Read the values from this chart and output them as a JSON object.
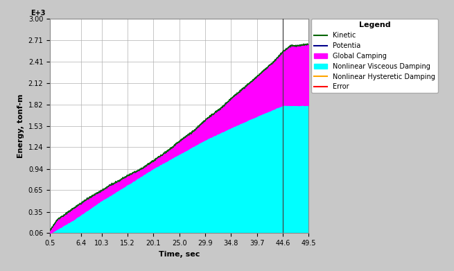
{
  "x_start": 0.5,
  "x_end": 49.5,
  "x_vline": 44.6,
  "ylim": [
    0.06,
    3.0
  ],
  "xlim": [
    0.5,
    49.5
  ],
  "yticks": [
    0.06,
    0.35,
    0.65,
    0.94,
    1.24,
    1.53,
    1.82,
    2.12,
    2.41,
    2.71,
    3.0
  ],
  "xtick_vals": [
    0.5,
    6.4,
    10.3,
    15.2,
    20.1,
    25.0,
    29.9,
    34.8,
    39.7,
    44.6,
    49.5
  ],
  "xtick_labels": [
    "0.5",
    "6.4",
    "10.3",
    "15.2",
    "20.1",
    "25.0",
    "29.9",
    "34.8",
    "39.7",
    "44.6",
    "49.5"
  ],
  "xlabel": "Time, sec",
  "ylabel": "Energy, tonf-m",
  "y_scale_label": "E+3",
  "bg_color": "#c8c8c8",
  "plot_bg_color": "#ffffff",
  "grid_color": "#b0b0b0",
  "cyan_color": "#00ffff",
  "magenta_color": "#ff00ff",
  "dark_green_color": "#006400",
  "dark_blue_color": "#00008B",
  "orange_color": "#FFA500",
  "red_color": "#FF0000",
  "vline_color": "#404040",
  "legend_title": "Legend",
  "legend_entries": [
    "Kinetic",
    "Potentia",
    "Global Camping",
    "Nonlinear Visceous Damping",
    "Nonlinear Hysteretic Damping",
    "Error"
  ],
  "legend_colors": [
    "#006400",
    "#00008B",
    "#ff00ff",
    "#00ffff",
    "#FFA500",
    "#FF0000"
  ],
  "figwidth": 6.55,
  "figheight": 3.91,
  "dpi": 100,
  "t_cyan_ref": [
    0.5,
    5,
    10,
    15,
    20,
    25,
    30,
    35,
    40,
    44.6,
    49.5
  ],
  "y_cyan_ref": [
    0.06,
    0.25,
    0.5,
    0.72,
    0.95,
    1.15,
    1.35,
    1.52,
    1.68,
    1.82,
    1.82
  ],
  "t_total_ref": [
    0.5,
    2,
    5,
    8,
    10,
    12,
    15,
    18,
    20,
    23,
    25,
    28,
    30,
    33,
    35,
    38,
    40,
    43,
    44.6,
    46,
    49.5
  ],
  "y_total_ref": [
    0.1,
    0.25,
    0.4,
    0.55,
    0.63,
    0.72,
    0.84,
    0.95,
    1.05,
    1.2,
    1.32,
    1.48,
    1.62,
    1.78,
    1.92,
    2.1,
    2.23,
    2.42,
    2.55,
    2.63,
    2.65
  ]
}
